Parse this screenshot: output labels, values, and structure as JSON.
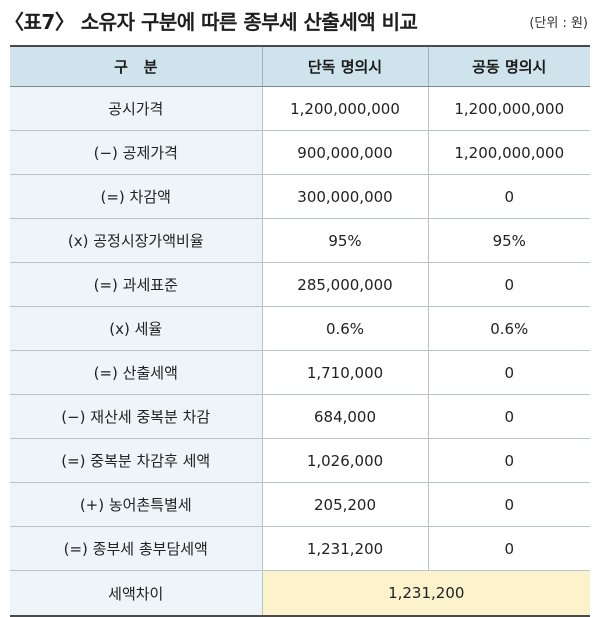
{
  "header": {
    "title": "〈표7〉 소유자 구분에 따른 종부세 산출세액 비교",
    "unit": "(단위 : 원)"
  },
  "table": {
    "columns": [
      "구   분",
      "단독 명의시",
      "공동 명의시"
    ],
    "rows": [
      [
        "공시가격",
        "1,200,000,000",
        "1,200,000,000"
      ],
      [
        "(−) 공제가격",
        "900,000,000",
        "1,200,000,000"
      ],
      [
        "(=) 차감액",
        "300,000,000",
        "0"
      ],
      [
        "(x) 공정시장가액비율",
        "95%",
        "95%"
      ],
      [
        "(=) 과세표준",
        "285,000,000",
        "0"
      ],
      [
        "(x) 세율",
        "0.6%",
        "0.6%"
      ],
      [
        "(=) 산출세액",
        "1,710,000",
        "0"
      ],
      [
        "(−) 재산세 중복분 차감",
        "684,000",
        "0"
      ],
      [
        "(=) 중복분 차감후 세액",
        "1,026,000",
        "0"
      ],
      [
        "(+) 농어촌특별세",
        "205,200",
        "0"
      ],
      [
        "(=) 종부세 총부담세액",
        "1,231,200",
        "0"
      ]
    ],
    "total": {
      "label": "세액차이",
      "value": "1,231,200"
    }
  }
}
